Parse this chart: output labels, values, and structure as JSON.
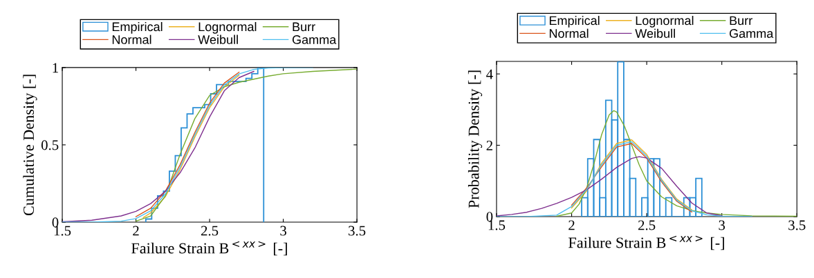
{
  "chart_data": [
    {
      "type": "line",
      "xlabel": "Failure Strain B$^{<xx>}$ [-]",
      "ylabel": "Cumulative Density [-]",
      "xlim": [
        1.5,
        3.5
      ],
      "xticks": [
        1.5,
        2,
        2.5,
        3,
        3.5
      ],
      "ylim": [
        0,
        1
      ],
      "yticks": [
        0,
        {
          "value": 0.5,
          "label": "0.5"
        },
        1
      ],
      "legend": "top",
      "grid": false,
      "series": [
        {
          "name": "Empirical",
          "type": "histogram",
          "color": "#2b8fd6",
          "bins": [
            2.067,
            2.107,
            2.147,
            2.187,
            2.227,
            2.267,
            2.307,
            2.347,
            2.387,
            2.427,
            2.467,
            2.507,
            2.547,
            2.587,
            2.627,
            2.667,
            2.707,
            2.747,
            2.787,
            2.827,
            2.867
          ],
          "values": [
            0.02,
            0.09,
            0.17,
            0.2,
            0.33,
            0.43,
            0.61,
            0.7,
            0.74,
            0.74,
            0.76,
            0.83,
            0.89,
            0.89,
            0.91,
            0.91,
            0.91,
            0.93,
            0.96,
            1.0
          ]
        },
        {
          "name": "Lognormal",
          "color": "#edb120",
          "x": [
            2.05,
            2.1,
            2.2,
            2.3,
            2.4,
            2.5,
            2.6,
            2.7
          ],
          "values": [
            0.03,
            0.06,
            0.165,
            0.34,
            0.55,
            0.74,
            0.875,
            0.95
          ]
        },
        {
          "name": "Burr",
          "color": "#77ac30",
          "x": [
            2.0,
            2.1,
            2.2,
            2.3,
            2.4,
            2.5,
            2.6,
            2.7,
            2.8,
            2.9,
            3.0,
            3.2,
            3.5
          ],
          "values": [
            0.006,
            0.04,
            0.17,
            0.44,
            0.67,
            0.82,
            0.875,
            0.905,
            0.925,
            0.945,
            0.96,
            0.975,
            0.99
          ]
        },
        {
          "name": "Normal",
          "color": "#d95319",
          "x": [
            2.0,
            2.1,
            2.2,
            2.3,
            2.4,
            2.5,
            2.6,
            2.7
          ],
          "values": [
            0.035,
            0.09,
            0.2,
            0.372,
            0.58,
            0.77,
            0.9,
            0.97
          ]
        },
        {
          "name": "Weibull",
          "color": "#7e2f8e",
          "x": [
            1.5,
            1.7,
            1.9,
            2.0,
            2.1,
            2.2,
            2.3,
            2.4,
            2.5,
            2.6,
            2.7,
            2.8
          ],
          "values": [
            0.002,
            0.012,
            0.04,
            0.07,
            0.12,
            0.2,
            0.32,
            0.48,
            0.68,
            0.85,
            0.935,
            0.975
          ]
        },
        {
          "name": "Gamma",
          "color": "#4dbeee",
          "x": [
            1.5,
            1.7,
            1.9,
            2.0,
            2.1,
            2.2,
            2.3,
            2.4,
            2.5,
            2.6,
            2.7,
            2.8,
            2.9,
            3.0,
            3.2
          ],
          "values": [
            0,
            0,
            0.006,
            0.023,
            0.073,
            0.183,
            0.356,
            0.565,
            0.755,
            0.888,
            0.959,
            0.988,
            0.997,
            0.999,
            1
          ]
        }
      ]
    },
    {
      "type": "line",
      "xlabel": "Failure Strain B$^{<xx>}$ [-]",
      "ylabel": "Probability Density [-]",
      "xlim": [
        1.5,
        3.5
      ],
      "xticks": [
        1.5,
        2,
        2.5,
        3,
        3.5
      ],
      "ylim": [
        0,
        4.35
      ],
      "yticks": [
        0,
        2,
        4
      ],
      "legend": "top",
      "grid": false,
      "series": [
        {
          "name": "Empirical",
          "type": "histogram",
          "color": "#2b8fd6",
          "bins": [
            2.067,
            2.107,
            2.147,
            2.187,
            2.227,
            2.267,
            2.307,
            2.347,
            2.387,
            2.427,
            2.467,
            2.507,
            2.547,
            2.587,
            2.627,
            2.667,
            2.707,
            2.747,
            2.787,
            2.827,
            2.867
          ],
          "values": [
            0.53,
            1.62,
            2.16,
            0.53,
            3.26,
            2.71,
            4.34,
            2.16,
            1.07,
            0,
            0.53,
            1.62,
            1.62,
            0,
            0.53,
            0,
            0,
            0.53,
            0.53,
            1.07
          ]
        },
        {
          "name": "Lognormal",
          "color": "#edb120",
          "x": [
            2.0,
            2.1,
            2.2,
            2.3,
            2.4,
            2.5,
            2.6,
            2.7,
            2.8
          ],
          "values": [
            0.24,
            0.72,
            1.5,
            2.05,
            2.15,
            1.74,
            1.04,
            0.49,
            0.19
          ]
        },
        {
          "name": "Burr",
          "color": "#77ac30",
          "x": [
            1.9,
            2.0,
            2.05,
            2.1,
            2.15,
            2.2,
            2.25,
            2.28,
            2.3,
            2.35,
            2.4,
            2.45,
            2.5,
            2.6,
            2.7,
            2.8,
            2.9,
            3.0,
            3.2,
            3.5
          ],
          "values": [
            0.01,
            0.1,
            0.35,
            0.8,
            1.5,
            2.3,
            2.85,
            2.97,
            2.93,
            2.55,
            2.0,
            1.45,
            1.0,
            0.55,
            0.3,
            0.17,
            0.1,
            0.06,
            0.02,
            0.01
          ]
        },
        {
          "name": "Normal",
          "color": "#d95319",
          "x": [
            2.0,
            2.1,
            2.2,
            2.3,
            2.4,
            2.5,
            2.6,
            2.7,
            2.8
          ],
          "values": [
            0.32,
            0.8,
            1.4,
            1.95,
            2.05,
            1.64,
            0.97,
            0.43,
            0.13
          ]
        },
        {
          "name": "Weibull",
          "color": "#7e2f8e",
          "x": [
            1.5,
            1.6,
            1.7,
            1.8,
            1.9,
            2.0,
            2.1,
            2.2,
            2.3,
            2.4,
            2.45,
            2.5,
            2.6,
            2.7,
            2.8,
            2.9,
            3.0
          ],
          "values": [
            0.02,
            0.06,
            0.12,
            0.23,
            0.37,
            0.54,
            0.75,
            1.05,
            1.38,
            1.63,
            1.68,
            1.64,
            1.35,
            0.85,
            0.38,
            0.1,
            0.02
          ]
        },
        {
          "name": "Gamma",
          "color": "#4dbeee",
          "x": [
            1.5,
            1.7,
            1.9,
            2.0,
            2.1,
            2.2,
            2.3,
            2.4,
            2.5,
            2.6,
            2.7,
            2.8,
            2.9,
            3.0,
            3.2
          ],
          "values": [
            0,
            0,
            0.04,
            0.28,
            0.76,
            1.45,
            2.0,
            2.1,
            1.69,
            1.01,
            0.46,
            0.16,
            0.05,
            0.01,
            0
          ]
        }
      ]
    }
  ]
}
